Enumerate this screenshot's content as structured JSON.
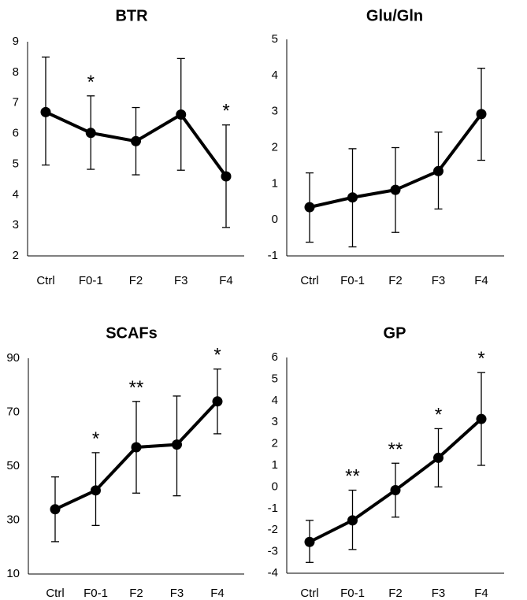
{
  "figure": {
    "colors": {
      "line": "#000000",
      "marker": "#000000",
      "text": "#000000",
      "background": "#ffffff"
    }
  },
  "chart_data": [
    {
      "type": "line",
      "title": "BTR",
      "categories": [
        "Ctrl",
        "F0-1",
        "F2",
        "F3",
        "F4"
      ],
      "values": [
        6.7,
        6.02,
        5.75,
        6.62,
        4.6
      ],
      "error_low": [
        4.97,
        4.83,
        4.65,
        4.8,
        2.93
      ],
      "error_high": [
        8.5,
        7.23,
        6.85,
        8.45,
        6.28
      ],
      "significance": [
        "",
        "*",
        "",
        "",
        "*"
      ],
      "yticks": [
        2,
        3,
        4,
        5,
        6,
        7,
        8,
        9
      ],
      "ylim": [
        2,
        9
      ],
      "xlabel": "",
      "ylabel": ""
    },
    {
      "type": "line",
      "title": "Glu/Gln",
      "categories": [
        "Ctrl",
        "F0-1",
        "F2",
        "F3",
        "F4"
      ],
      "values": [
        0.35,
        0.62,
        0.83,
        1.35,
        2.93
      ],
      "error_low": [
        -0.62,
        -0.75,
        -0.35,
        0.3,
        1.65
      ],
      "error_high": [
        1.3,
        1.97,
        2.0,
        2.43,
        4.2
      ],
      "significance": [
        "",
        "",
        "",
        "",
        ""
      ],
      "yticks": [
        -1,
        0,
        1,
        2,
        3,
        4,
        5
      ],
      "ylim": [
        -1,
        5
      ],
      "xlabel": "",
      "ylabel": ""
    },
    {
      "type": "line",
      "title": "SCAFs",
      "categories": [
        "Ctrl",
        "F0-1",
        "F2",
        "F3",
        "F4"
      ],
      "values": [
        34,
        41,
        57,
        58,
        74
      ],
      "error_low": [
        22,
        28,
        40,
        39,
        62
      ],
      "error_high": [
        46,
        55,
        74,
        76,
        86
      ],
      "significance": [
        "",
        "*",
        "**",
        "",
        "*"
      ],
      "yticks": [
        10,
        30,
        50,
        70,
        90
      ],
      "ylim": [
        10,
        90
      ],
      "xlabel": "",
      "ylabel": ""
    },
    {
      "type": "line",
      "title": "GP",
      "categories": [
        "Ctrl",
        "F0-1",
        "F2",
        "F3",
        "F4"
      ],
      "values": [
        -2.55,
        -1.55,
        -0.15,
        1.35,
        3.15
      ],
      "error_low": [
        -3.5,
        -2.9,
        -1.4,
        0.0,
        1.0
      ],
      "error_high": [
        -1.55,
        -0.15,
        1.1,
        2.7,
        5.3
      ],
      "significance": [
        "",
        "**",
        "**",
        "*",
        "*"
      ],
      "yticks": [
        -4,
        -3,
        -2,
        -1,
        0,
        1,
        2,
        3,
        4,
        5,
        6
      ],
      "ylim": [
        -4,
        6
      ],
      "xlabel": "",
      "ylabel": ""
    }
  ]
}
